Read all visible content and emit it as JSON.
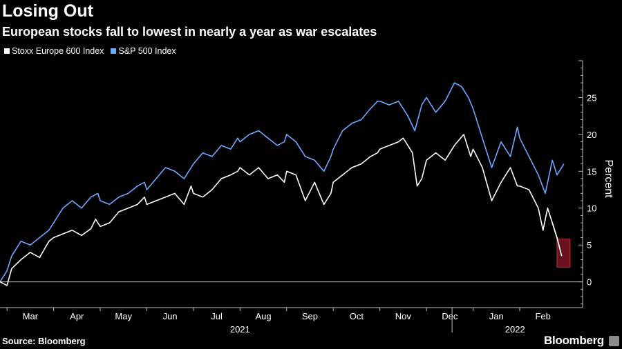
{
  "header": {
    "title": "Losing Out",
    "subtitle": "European stocks fall to lowest in nearly a year as war escalates"
  },
  "footer": {
    "source": "Source: Bloomberg",
    "brand": "Bloomberg"
  },
  "chart_data": {
    "type": "line",
    "title": "Losing Out",
    "subtitle": "European stocks fall to lowest in nearly a year as war escalates",
    "ylabel": "Percent",
    "ylim": [
      -3.5,
      30
    ],
    "yticks": [
      0,
      5,
      10,
      15,
      20,
      25
    ],
    "y_axis_position": "right",
    "grid": false,
    "legend_position": "top-left",
    "x_unit": "months since Mar 1, 2021",
    "xlim": [
      -0.15,
      12.35
    ],
    "month_ticks": [
      {
        "label": "Mar",
        "x": 0.0
      },
      {
        "label": "Apr",
        "x": 1.0
      },
      {
        "label": "May",
        "x": 2.0
      },
      {
        "label": "Jun",
        "x": 3.0
      },
      {
        "label": "Jul",
        "x": 4.0
      },
      {
        "label": "Aug",
        "x": 5.0
      },
      {
        "label": "Sep",
        "x": 6.0
      },
      {
        "label": "Oct",
        "x": 7.0
      },
      {
        "label": "Nov",
        "x": 8.0
      },
      {
        "label": "Dec",
        "x": 9.0
      },
      {
        "label": "Jan",
        "x": 10.0
      },
      {
        "label": "Feb",
        "x": 11.0
      }
    ],
    "year_labels": [
      {
        "label": "2021",
        "x": 5.0
      },
      {
        "label": "2022",
        "x": 10.9
      }
    ],
    "year_divider_x": 9.55,
    "series": [
      {
        "name": "Stoxx Europe 600 Index",
        "color": "#ffffff",
        "points": [
          [
            -0.15,
            0.0
          ],
          [
            0.0,
            -0.5
          ],
          [
            0.1,
            1.8
          ],
          [
            0.3,
            3.0
          ],
          [
            0.5,
            4.0
          ],
          [
            0.7,
            3.3
          ],
          [
            0.9,
            5.5
          ],
          [
            1.0,
            6.0
          ],
          [
            1.2,
            6.5
          ],
          [
            1.4,
            7.0
          ],
          [
            1.6,
            6.3
          ],
          [
            1.8,
            7.2
          ],
          [
            1.9,
            8.5
          ],
          [
            2.0,
            7.5
          ],
          [
            2.2,
            8.0
          ],
          [
            2.4,
            9.5
          ],
          [
            2.6,
            10.0
          ],
          [
            2.8,
            10.5
          ],
          [
            2.95,
            11.5
          ],
          [
            3.0,
            10.5
          ],
          [
            3.2,
            11.0
          ],
          [
            3.4,
            11.5
          ],
          [
            3.6,
            12.0
          ],
          [
            3.8,
            10.5
          ],
          [
            3.95,
            13.0
          ],
          [
            4.0,
            12.0
          ],
          [
            4.2,
            11.5
          ],
          [
            4.4,
            12.5
          ],
          [
            4.6,
            14.0
          ],
          [
            4.8,
            14.5
          ],
          [
            4.95,
            15.0
          ],
          [
            5.0,
            15.5
          ],
          [
            5.2,
            14.5
          ],
          [
            5.4,
            15.5
          ],
          [
            5.6,
            14.0
          ],
          [
            5.8,
            14.5
          ],
          [
            5.95,
            13.5
          ],
          [
            6.0,
            15.0
          ],
          [
            6.2,
            14.5
          ],
          [
            6.4,
            11.0
          ],
          [
            6.6,
            13.5
          ],
          [
            6.8,
            10.5
          ],
          [
            6.95,
            12.0
          ],
          [
            7.0,
            13.5
          ],
          [
            7.2,
            14.5
          ],
          [
            7.4,
            15.5
          ],
          [
            7.6,
            16.0
          ],
          [
            7.8,
            17.0
          ],
          [
            7.95,
            17.5
          ],
          [
            8.0,
            18.0
          ],
          [
            8.2,
            18.5
          ],
          [
            8.4,
            19.0
          ],
          [
            8.5,
            19.5
          ],
          [
            8.7,
            17.5
          ],
          [
            8.8,
            13.0
          ],
          [
            8.9,
            14.0
          ],
          [
            9.0,
            16.5
          ],
          [
            9.2,
            17.5
          ],
          [
            9.4,
            16.5
          ],
          [
            9.6,
            18.5
          ],
          [
            9.8,
            20.0
          ],
          [
            9.95,
            17.0
          ],
          [
            10.0,
            18.0
          ],
          [
            10.2,
            15.5
          ],
          [
            10.4,
            11.0
          ],
          [
            10.6,
            13.5
          ],
          [
            10.8,
            15.5
          ],
          [
            10.95,
            13.0
          ],
          [
            11.0,
            13.0
          ],
          [
            11.2,
            12.5
          ],
          [
            11.4,
            10.0
          ],
          [
            11.5,
            7.0
          ],
          [
            11.6,
            10.0
          ],
          [
            11.7,
            8.0
          ],
          [
            11.8,
            6.0
          ],
          [
            11.9,
            3.5
          ]
        ]
      },
      {
        "name": "S&P 500 Index",
        "color": "#6ea8ff",
        "points": [
          [
            -0.15,
            0.0
          ],
          [
            0.0,
            1.5
          ],
          [
            0.1,
            3.5
          ],
          [
            0.3,
            5.5
          ],
          [
            0.5,
            5.0
          ],
          [
            0.7,
            6.0
          ],
          [
            0.9,
            7.0
          ],
          [
            1.0,
            8.0
          ],
          [
            1.2,
            10.0
          ],
          [
            1.4,
            11.0
          ],
          [
            1.6,
            10.0
          ],
          [
            1.8,
            11.5
          ],
          [
            1.95,
            12.0
          ],
          [
            2.0,
            11.0
          ],
          [
            2.2,
            10.5
          ],
          [
            2.4,
            11.5
          ],
          [
            2.6,
            12.0
          ],
          [
            2.8,
            13.0
          ],
          [
            2.95,
            13.5
          ],
          [
            3.0,
            12.5
          ],
          [
            3.2,
            14.0
          ],
          [
            3.4,
            15.5
          ],
          [
            3.6,
            15.0
          ],
          [
            3.8,
            14.0
          ],
          [
            3.95,
            15.5
          ],
          [
            4.0,
            16.0
          ],
          [
            4.2,
            17.5
          ],
          [
            4.4,
            17.0
          ],
          [
            4.6,
            18.5
          ],
          [
            4.8,
            18.0
          ],
          [
            4.95,
            19.5
          ],
          [
            5.0,
            19.0
          ],
          [
            5.2,
            20.0
          ],
          [
            5.4,
            20.5
          ],
          [
            5.6,
            19.5
          ],
          [
            5.8,
            18.5
          ],
          [
            5.95,
            19.0
          ],
          [
            6.0,
            20.0
          ],
          [
            6.2,
            19.0
          ],
          [
            6.4,
            17.0
          ],
          [
            6.6,
            16.5
          ],
          [
            6.8,
            15.0
          ],
          [
            6.95,
            17.0
          ],
          [
            7.0,
            18.0
          ],
          [
            7.2,
            20.5
          ],
          [
            7.4,
            21.5
          ],
          [
            7.6,
            22.0
          ],
          [
            7.8,
            23.5
          ],
          [
            7.95,
            24.5
          ],
          [
            8.0,
            24.5
          ],
          [
            8.2,
            24.0
          ],
          [
            8.4,
            24.5
          ],
          [
            8.6,
            22.5
          ],
          [
            8.75,
            20.5
          ],
          [
            8.9,
            24.0
          ],
          [
            9.0,
            25.0
          ],
          [
            9.2,
            23.0
          ],
          [
            9.4,
            24.5
          ],
          [
            9.6,
            27.0
          ],
          [
            9.75,
            26.5
          ],
          [
            9.9,
            25.0
          ],
          [
            10.0,
            23.5
          ],
          [
            10.2,
            19.5
          ],
          [
            10.4,
            15.5
          ],
          [
            10.6,
            19.0
          ],
          [
            10.8,
            17.0
          ],
          [
            10.95,
            21.0
          ],
          [
            11.0,
            19.5
          ],
          [
            11.2,
            17.0
          ],
          [
            11.4,
            14.5
          ],
          [
            11.55,
            12.0
          ],
          [
            11.7,
            16.5
          ],
          [
            11.8,
            14.5
          ],
          [
            11.95,
            16.0
          ]
        ]
      }
    ],
    "annotations": [
      {
        "type": "highlight-box",
        "color": "#8b1a24",
        "x_range": [
          11.8,
          12.08
        ],
        "y_range": [
          2.0,
          5.8
        ]
      }
    ]
  }
}
